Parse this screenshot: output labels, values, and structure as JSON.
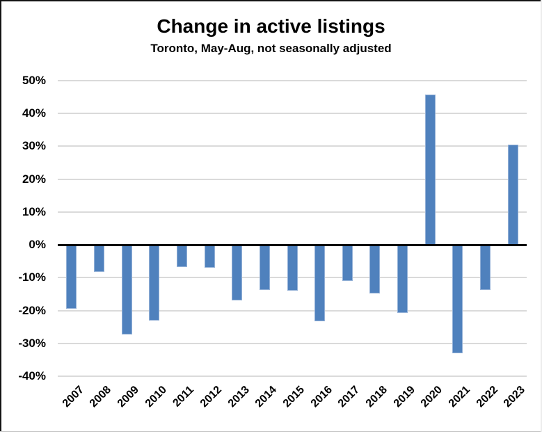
{
  "chart_data": {
    "type": "bar",
    "title": "Change in active listings",
    "subtitle": "Toronto, May-Aug, not seasonally adjusted",
    "categories": [
      "2007",
      "2008",
      "2009",
      "2010",
      "2011",
      "2012",
      "2013",
      "2014",
      "2015",
      "2016",
      "2017",
      "2018",
      "2019",
      "2020",
      "2021",
      "2022",
      "2023"
    ],
    "values": [
      -19.5,
      -8.3,
      -27.4,
      -23.0,
      -6.8,
      -7.0,
      -17.0,
      -13.8,
      -14.0,
      -23.2,
      -11.0,
      -14.7,
      -20.8,
      45.7,
      -33.0,
      -13.8,
      30.6
    ],
    "unit": "%",
    "xlabel": "",
    "ylabel": "",
    "ylim": [
      -40,
      50
    ],
    "ytick_step": 10,
    "ytick_labels": [
      "50%",
      "40%",
      "30%",
      "20%",
      "10%",
      "0%",
      "-10%",
      "-20%",
      "-30%",
      "-40%"
    ],
    "grid": true,
    "legend": false,
    "colors": {
      "bar": "#4F81BD",
      "bar_edge": "#94b1d7",
      "gridline": "#DADADA",
      "zero_line": "#000000",
      "text": "#000000",
      "background": "#FFFFFF"
    }
  }
}
